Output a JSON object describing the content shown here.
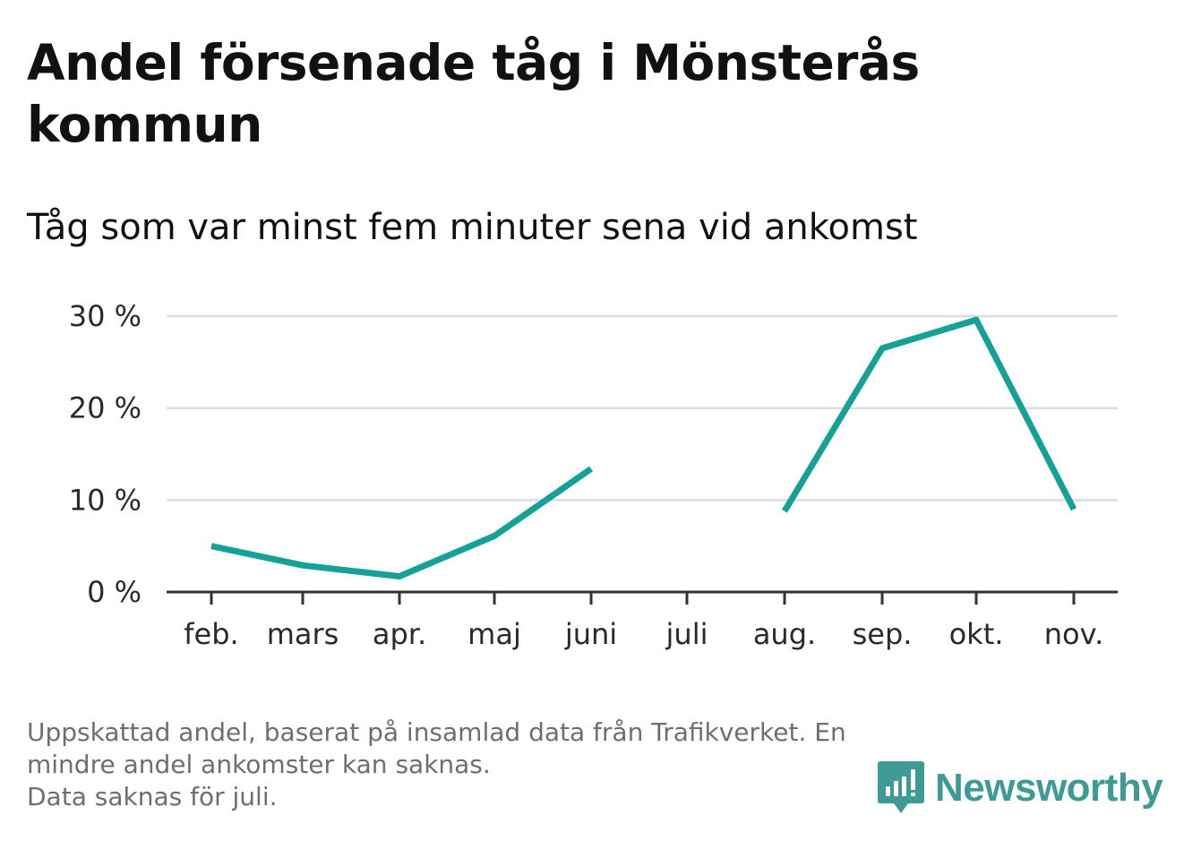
{
  "header": {
    "title": "Andel försenade tåg i Mönsterås kommun",
    "subtitle": "Tåg som var minst fem minuter sena vid ankomst"
  },
  "footer": {
    "note_line1": "Uppskattad andel, baserat på insamlad data från Trafikverket. En mindre andel ankomster kan saknas.",
    "note_line2": "Data saknas för juli.",
    "brand_name": "Newsworthy",
    "brand_icon": "bar-chart-speech-bubble-icon"
  },
  "colors": {
    "line": "#14a298",
    "grid": "#dddddd",
    "axis": "#333333",
    "brand": "#3e9a95"
  },
  "chart_data": {
    "type": "line",
    "title": "Andel försenade tåg i Mönsterås kommun",
    "subtitle": "Tåg som var minst fem minuter sena vid ankomst",
    "categories": [
      "feb.",
      "mars",
      "apr.",
      "maj",
      "juni",
      "juli",
      "aug.",
      "sep.",
      "okt.",
      "nov."
    ],
    "series": [
      {
        "values": [
          5.0,
          2.9,
          1.7,
          6.1,
          13.4,
          null,
          8.8,
          26.5,
          29.6,
          9.0
        ]
      }
    ],
    "y_ticks": [
      0,
      10,
      20,
      30
    ],
    "y_tick_labels": [
      "0 %",
      "10 %",
      "20 %",
      "30 %"
    ],
    "ylim": [
      0,
      30
    ],
    "grid": true,
    "legend": false
  }
}
